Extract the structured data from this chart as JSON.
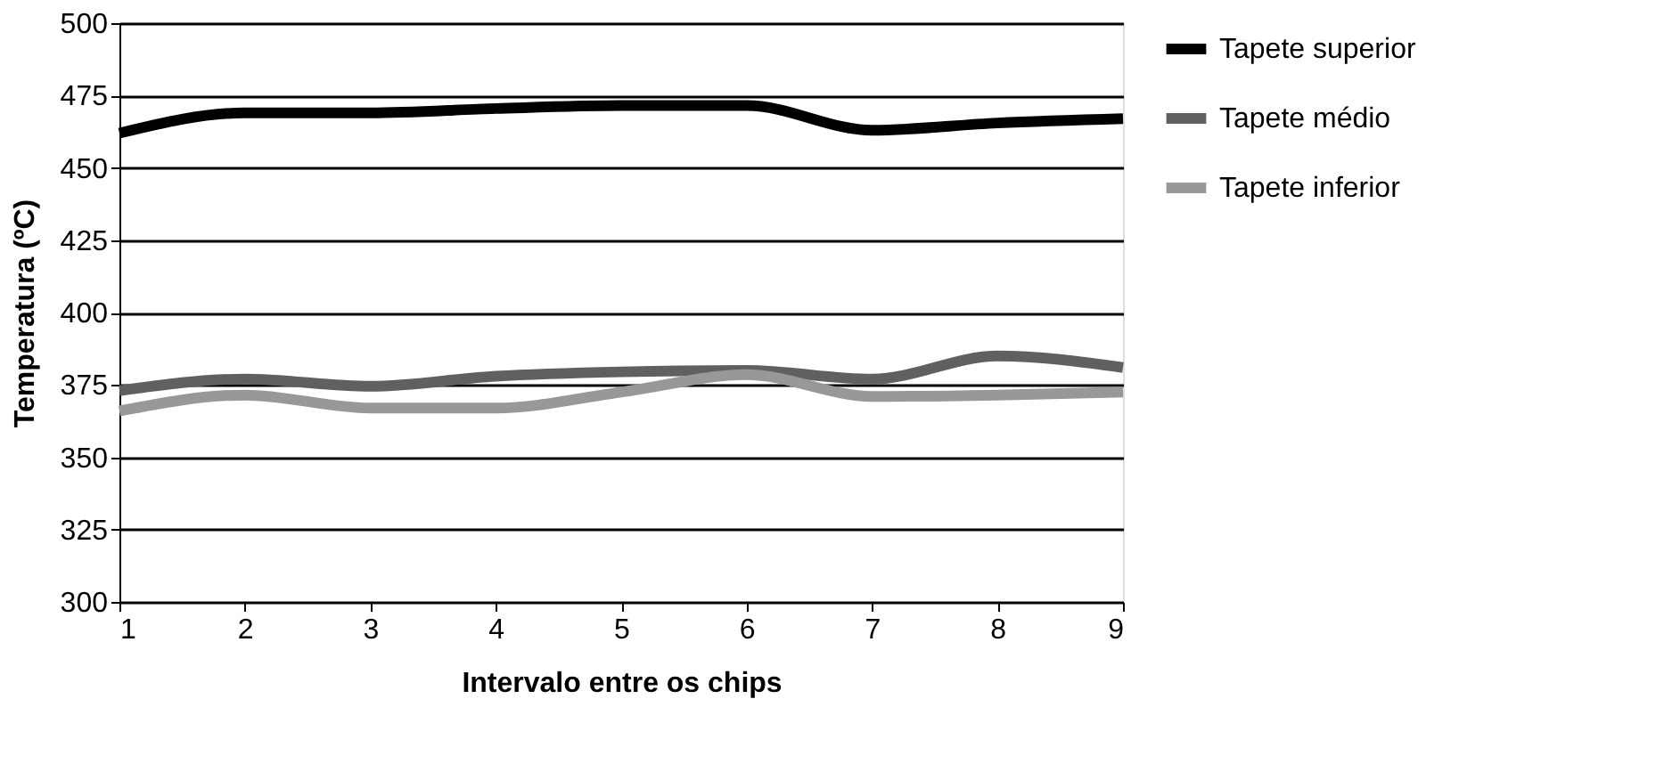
{
  "chart_data": {
    "type": "line",
    "xlabel": "Intervalo entre os chips",
    "ylabel": "Temperatura (ºC)",
    "x": [
      1,
      2,
      3,
      4,
      5,
      6,
      7,
      8,
      9
    ],
    "series": [
      {
        "name": "Tapete superior",
        "color": "#000000",
        "values": [
          462,
          469,
          469,
          470.5,
          471.5,
          471.5,
          463,
          465.5,
          467
        ]
      },
      {
        "name": "Tapete médio",
        "color": "#606060",
        "values": [
          373,
          377,
          374.5,
          378,
          379.5,
          380,
          377,
          385,
          381
        ]
      },
      {
        "name": "Tapete inferior",
        "color": "#989898",
        "values": [
          366,
          371.5,
          367,
          367,
          372.5,
          378.5,
          371,
          371.5,
          372.5
        ]
      }
    ],
    "xlim": [
      1,
      9
    ],
    "xticks": [
      1,
      2,
      3,
      4,
      5,
      6,
      7,
      8,
      9
    ],
    "ylim": [
      300,
      500
    ],
    "yticks": [
      300,
      325,
      350,
      375,
      400,
      425,
      450,
      475,
      500
    ],
    "grid": "y",
    "legend": "right",
    "marker": "none",
    "line_style": "solid"
  }
}
